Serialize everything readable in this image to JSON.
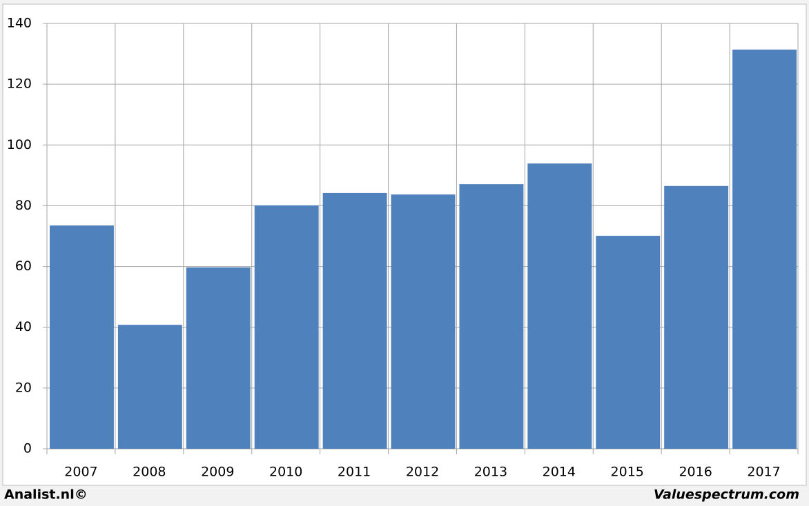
{
  "chart_data": {
    "type": "bar",
    "categories": [
      "2007",
      "2008",
      "2009",
      "2010",
      "2011",
      "2012",
      "2013",
      "2014",
      "2015",
      "2016",
      "2017"
    ],
    "values": [
      73.5,
      40.8,
      59.7,
      80.1,
      84.2,
      83.7,
      87.1,
      93.9,
      70.1,
      86.5,
      131.4
    ],
    "color": "#4f81bd",
    "ylim": [
      0,
      140
    ],
    "yticks": [
      0,
      20,
      40,
      60,
      80,
      100,
      120,
      140
    ],
    "grid": true,
    "source_left": "Analist.nl©",
    "source_right": "Valuespectrum.com"
  }
}
